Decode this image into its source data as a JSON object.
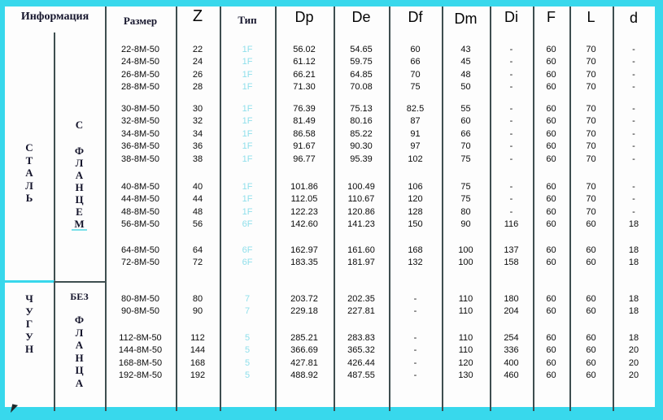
{
  "colors": {
    "frame": "#38d8ec",
    "grid_line": "#3e4e50",
    "type_text": "#8fdfeb"
  },
  "headers": {
    "info": "Информация",
    "size": "Размер",
    "z": "Z",
    "type": "Тип",
    "dp": "Dp",
    "de": "De",
    "df": "Df",
    "dm": "Dm",
    "di": "Di",
    "f": "F",
    "l": "L",
    "d": "d"
  },
  "sections": {
    "steel": {
      "material": "СТАЛЬ",
      "flange_word1": "С",
      "flange_word2": "ФЛАНЦЕМ"
    },
    "iron": {
      "material": "ЧУГУН",
      "flange_word1": "БЕЗ",
      "flange_word2": "ФЛАНЦА"
    }
  },
  "groups": [
    [
      [
        "22-8M-50",
        "22",
        "1F",
        "56.02",
        "54.65",
        "60",
        "43",
        "-",
        "60",
        "70",
        "-"
      ],
      [
        "24-8M-50",
        "24",
        "1F",
        "61.12",
        "59.75",
        "66",
        "45",
        "-",
        "60",
        "70",
        "-"
      ],
      [
        "26-8M-50",
        "26",
        "1F",
        "66.21",
        "64.85",
        "70",
        "48",
        "-",
        "60",
        "70",
        "-"
      ],
      [
        "28-8M-50",
        "28",
        "1F",
        "71.30",
        "70.08",
        "75",
        "50",
        "-",
        "60",
        "70",
        "-"
      ]
    ],
    [
      [
        "30-8M-50",
        "30",
        "1F",
        "76.39",
        "75.13",
        "82.5",
        "55",
        "-",
        "60",
        "70",
        "-"
      ],
      [
        "32-8M-50",
        "32",
        "1F",
        "81.49",
        "80.16",
        "87",
        "60",
        "-",
        "60",
        "70",
        "-"
      ],
      [
        "34-8M-50",
        "34",
        "1F",
        "86.58",
        "85.22",
        "91",
        "66",
        "-",
        "60",
        "70",
        "-"
      ],
      [
        "36-8M-50",
        "36",
        "1F",
        "91.67",
        "90.30",
        "97",
        "70",
        "-",
        "60",
        "70",
        "-"
      ],
      [
        "38-8M-50",
        "38",
        "1F",
        "96.77",
        "95.39",
        "102",
        "75",
        "-",
        "60",
        "70",
        "-"
      ]
    ],
    [
      [
        "40-8M-50",
        "40",
        "1F",
        "101.86",
        "100.49",
        "106",
        "75",
        "-",
        "60",
        "70",
        "-"
      ],
      [
        "44-8M-50",
        "44",
        "1F",
        "112.05",
        "110.67",
        "120",
        "75",
        "-",
        "60",
        "70",
        "-"
      ],
      [
        "48-8M-50",
        "48",
        "1F",
        "122.23",
        "120.86",
        "128",
        "80",
        "-",
        "60",
        "70",
        "-"
      ],
      [
        "56-8M-50",
        "56",
        "6F",
        "142.60",
        "141.23",
        "150",
        "90",
        "116",
        "60",
        "60",
        "18"
      ]
    ],
    [
      [
        "64-8M-50",
        "64",
        "6F",
        "162.97",
        "161.60",
        "168",
        "100",
        "137",
        "60",
        "60",
        "18"
      ],
      [
        "72-8M-50",
        "72",
        "6F",
        "183.35",
        "181.97",
        "132",
        "100",
        "158",
        "60",
        "60",
        "18"
      ]
    ],
    [
      [
        "80-8M-50",
        "80",
        "7",
        "203.72",
        "202.35",
        "-",
        "110",
        "180",
        "60",
        "60",
        "18"
      ],
      [
        "90-8M-50",
        "90",
        "7",
        "229.18",
        "227.81",
        "-",
        "110",
        "204",
        "60",
        "60",
        "18"
      ]
    ],
    [
      [
        "112-8M-50",
        "112",
        "5",
        "285.21",
        "283.83",
        "-",
        "110",
        "254",
        "60",
        "60",
        "18"
      ],
      [
        "144-8M-50",
        "144",
        "5",
        "366.69",
        "365.32",
        "-",
        "110",
        "336",
        "60",
        "60",
        "20"
      ],
      [
        "168-8M-50",
        "168",
        "5",
        "427.81",
        "426.44",
        "-",
        "120",
        "400",
        "60",
        "60",
        "20"
      ],
      [
        "192-8M-50",
        "192",
        "5",
        "488.92",
        "487.55",
        "-",
        "130",
        "460",
        "60",
        "60",
        "20"
      ]
    ]
  ]
}
